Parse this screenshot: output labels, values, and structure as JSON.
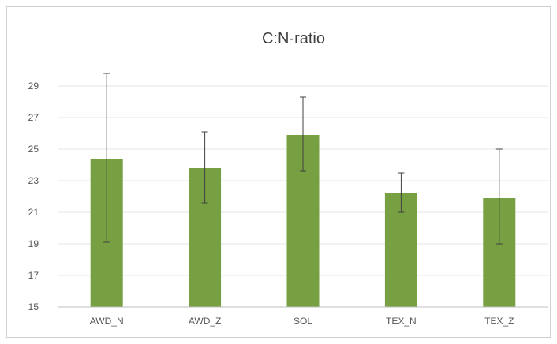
{
  "chart_data": {
    "type": "bar",
    "title": "C:N-ratio",
    "xlabel": "",
    "ylabel": "",
    "categories": [
      "AWD_N",
      "AWD_Z",
      "SOL",
      "TEX_N",
      "TEX_Z"
    ],
    "values": [
      24.4,
      23.8,
      25.9,
      22.2,
      21.9
    ],
    "error_bars": [
      {
        "low": 19.1,
        "high": 29.8
      },
      {
        "low": 21.6,
        "high": 26.1
      },
      {
        "low": 23.6,
        "high": 28.3
      },
      {
        "low": 21.0,
        "high": 23.5
      },
      {
        "low": 19.0,
        "high": 25.0
      }
    ],
    "ylim": [
      15,
      31
    ],
    "yticks": [
      15,
      17,
      19,
      21,
      23,
      25,
      27,
      29
    ],
    "grid": true,
    "legend": "none",
    "colors": {
      "bar": "#77a043",
      "error_bar": "#404040",
      "grid": "#e6e6e6",
      "axis": "#bfbfbf"
    }
  }
}
